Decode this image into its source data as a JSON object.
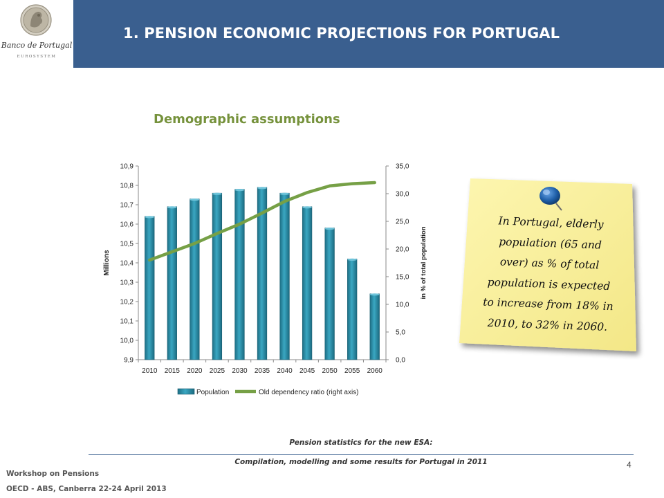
{
  "header": {
    "title": "1. PENSION ECONOMIC PROJECTIONS FOR PORTUGAL",
    "logo_name": "Banco de Portugal",
    "logo_sub": "EUROSYSTEM"
  },
  "section_title": "Demographic assumptions",
  "note": {
    "text": "In Portugal, elderly population (65 and over) as % of total population is expected to increase from 18% in 2010, to 32% in 2060.",
    "note_color": "#fbf3a0",
    "pin_color": "#1f5fa8"
  },
  "chart_data": {
    "type": "bar",
    "categories": [
      "2010",
      "2015",
      "2020",
      "2025",
      "2030",
      "2035",
      "2040",
      "2045",
      "2050",
      "2055",
      "2060"
    ],
    "series": [
      {
        "name": "Population",
        "type": "bar",
        "axis": "left",
        "color": "#2e8fa6",
        "values": [
          10.64,
          10.69,
          10.73,
          10.76,
          10.78,
          10.79,
          10.76,
          10.69,
          10.58,
          10.42,
          10.24
        ]
      },
      {
        "name": "Old dependency ratio (right axis)",
        "type": "line",
        "axis": "right",
        "color": "#76a046",
        "values": [
          18.0,
          19.5,
          21.0,
          22.8,
          24.5,
          26.5,
          28.6,
          30.2,
          31.4,
          31.8,
          32.0
        ]
      }
    ],
    "ylabel": "Millions",
    "ylim": [
      9.9,
      10.9
    ],
    "yticks": [
      "10,9",
      "10,8",
      "10,7",
      "10,6",
      "10,5",
      "10,4",
      "10,3",
      "10,2",
      "10,1",
      "10,0",
      "9,9"
    ],
    "y2label": "in % of total population",
    "y2lim": [
      0,
      35
    ],
    "y2ticks": [
      "35,0",
      "30,0",
      "25,0",
      "20,0",
      "15,0",
      "10,0",
      "5,0",
      "0,0"
    ],
    "legend_position": "bottom",
    "grid": false
  },
  "footer": {
    "center_line1": "Pension statistics for the new ESA:",
    "center_line2": "Compilation, modelling and some results for Portugal in 2011",
    "page_number": "4",
    "left_line1": "Workshop on Pensions",
    "left_line2": "OECD - ABS,  Canberra 22-24 April 2013"
  }
}
